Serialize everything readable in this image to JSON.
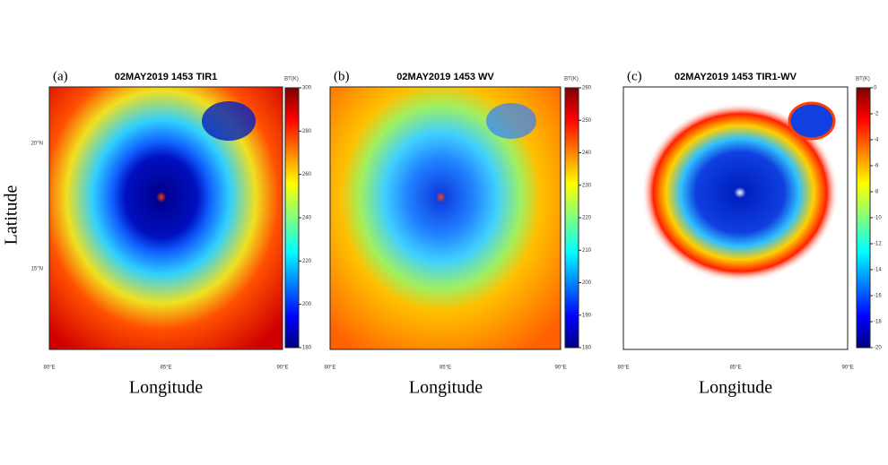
{
  "axes": {
    "y_label": "Latitude",
    "x_label": "Longitude"
  },
  "panels": [
    {
      "letter": "(a)",
      "title": "02MAY2019 1453 TIR1",
      "unit": "BT(K)",
      "colorbar_ticks": [
        300,
        280,
        260,
        240,
        220,
        200,
        180
      ],
      "lat_ticks": [
        "20°N",
        "15°N"
      ],
      "lon_ticks": [
        "80°E",
        "85°E",
        "90°E"
      ]
    },
    {
      "letter": "(b)",
      "title": "02MAY2019 1453 WV",
      "unit": "BT(K)",
      "colorbar_ticks": [
        260,
        250,
        240,
        230,
        220,
        210,
        200,
        190,
        180
      ],
      "lon_ticks": [
        "80°E",
        "85°E",
        "90°E"
      ]
    },
    {
      "letter": "(c)",
      "title": "02MAY2019 1453 TIR1-WV",
      "unit": "BT(K)",
      "colorbar_ticks": [
        0,
        -2,
        -4,
        -6,
        -8,
        -10,
        -12,
        -14,
        -16,
        -18,
        -20
      ],
      "lon_ticks": [
        "80°E",
        "85°E",
        "90°E"
      ]
    }
  ]
}
